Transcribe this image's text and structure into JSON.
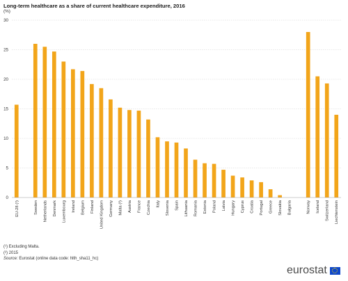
{
  "chart_data": {
    "type": "bar",
    "title": "Long-term healthcare as a share of current healthcare expenditure, 2016",
    "unit": "(%)",
    "xlabel": "",
    "ylabel": "",
    "ylim": [
      0,
      30
    ],
    "yticks": [
      0,
      5,
      10,
      15,
      20,
      25,
      30
    ],
    "grid": true,
    "bar_color": "#f2a51a",
    "categories": [
      "EU-28 (¹)",
      "",
      "Sweden",
      "Netherlands",
      "Denmark",
      "Luxembourg",
      "Ireland",
      "Belgium",
      "Finland",
      "United Kingdom",
      "Germany",
      "Malta (²)",
      "Austria",
      "France",
      "Czechia",
      "Italy",
      "Slovenia",
      "Spain",
      "Lithuania",
      "Romania",
      "Estonia",
      "Poland",
      "Latvia",
      "Hungary",
      "Cyprus",
      "Croatia",
      "Portugal",
      "Greece",
      "Slovakia",
      "Bulgaria",
      "",
      "Norway",
      "Iceland",
      "Switzerland",
      "Liechtenstein"
    ],
    "values": [
      15.7,
      null,
      26.0,
      25.5,
      24.7,
      23.0,
      21.7,
      21.4,
      19.2,
      18.5,
      16.6,
      15.2,
      14.8,
      14.7,
      13.2,
      10.2,
      9.5,
      9.3,
      8.3,
      6.4,
      5.8,
      5.7,
      4.7,
      3.7,
      3.4,
      2.9,
      2.6,
      1.4,
      0.4,
      0.0,
      null,
      28.0,
      20.5,
      19.3,
      14.0
    ]
  },
  "footnotes": {
    "note1": "(¹) Excluding Malta.",
    "note2": "(²) 2015",
    "source_label": "Source:",
    "source_text": "Eurostat (online data code: hlth_sha11_hc)"
  },
  "logo": {
    "text": "eurostat",
    "flag_color": "#0e47cb"
  }
}
